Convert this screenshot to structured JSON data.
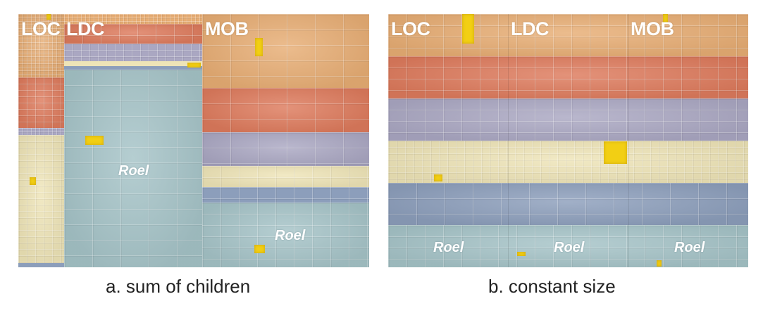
{
  "panel_a": {
    "caption": "a. sum of children",
    "group_labels": {
      "loc": "LOC",
      "ldc": "LDC",
      "mob": "MOB"
    },
    "leaf_labels": {
      "ldc_roel": "Roel",
      "mob_roel": "Roel"
    }
  },
  "panel_b": {
    "caption": "b. constant size",
    "group_labels": {
      "loc": "LOC",
      "ldc": "LDC",
      "mob": "MOB"
    },
    "leaf_labels": {
      "loc_roel": "Roel",
      "ldc_roel": "Roel",
      "mob_roel": "Roel"
    }
  },
  "colors": {
    "orange": "#e7ad74",
    "red": "#dd7a5c",
    "lavender": "#aaa7c2",
    "cream": "#eee4b7",
    "blue": "#8c9ebb",
    "teal": "#a5c3c7",
    "highlight": "#f2cf14"
  }
}
